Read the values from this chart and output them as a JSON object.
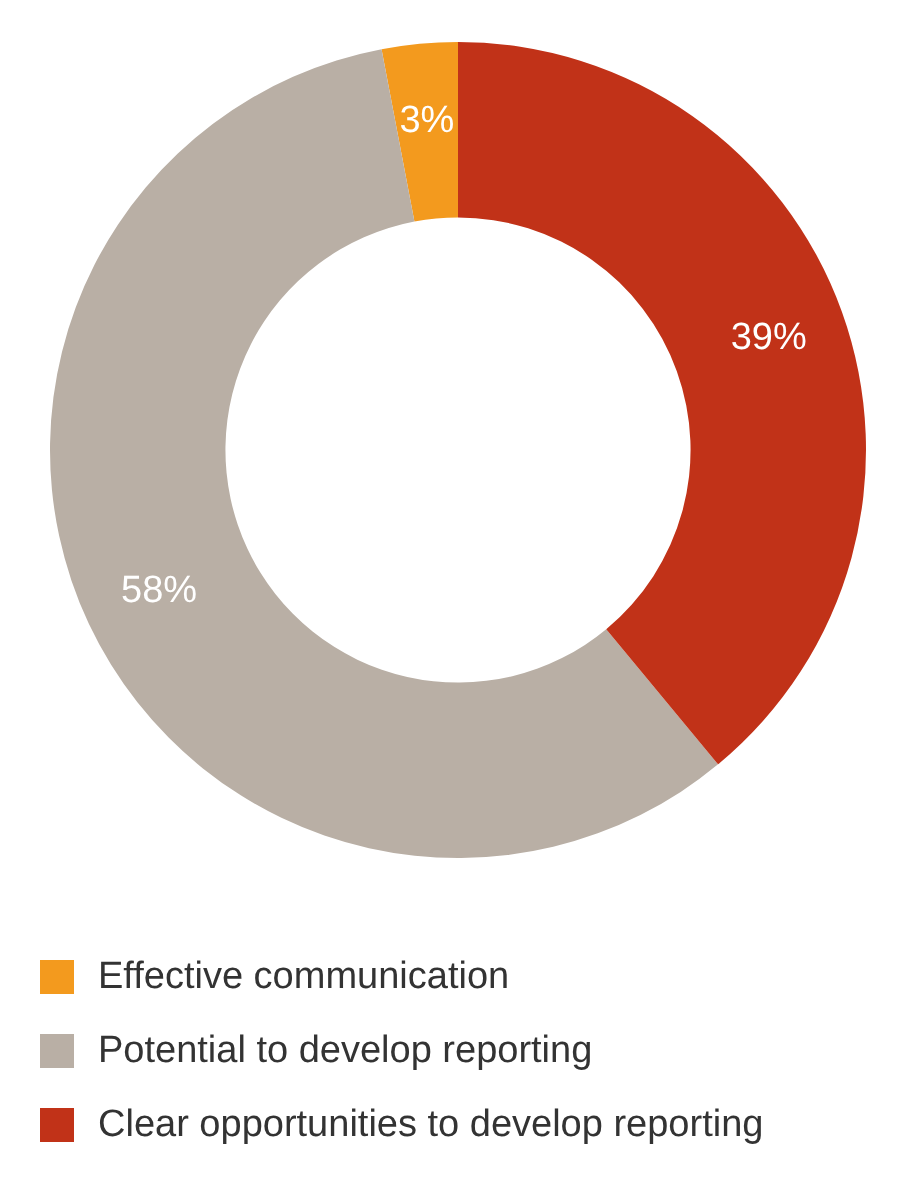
{
  "chart_data": {
    "type": "donut",
    "categories": [
      "Effective communication",
      "Potential to develop reporting",
      "Clear opportunities to develop reporting"
    ],
    "values": [
      3,
      58,
      39
    ],
    "colors": [
      "#f39a1e",
      "#b9afa5",
      "#c13218"
    ],
    "value_labels": [
      "3%",
      "58%",
      "39%"
    ],
    "legend": "bottom"
  }
}
